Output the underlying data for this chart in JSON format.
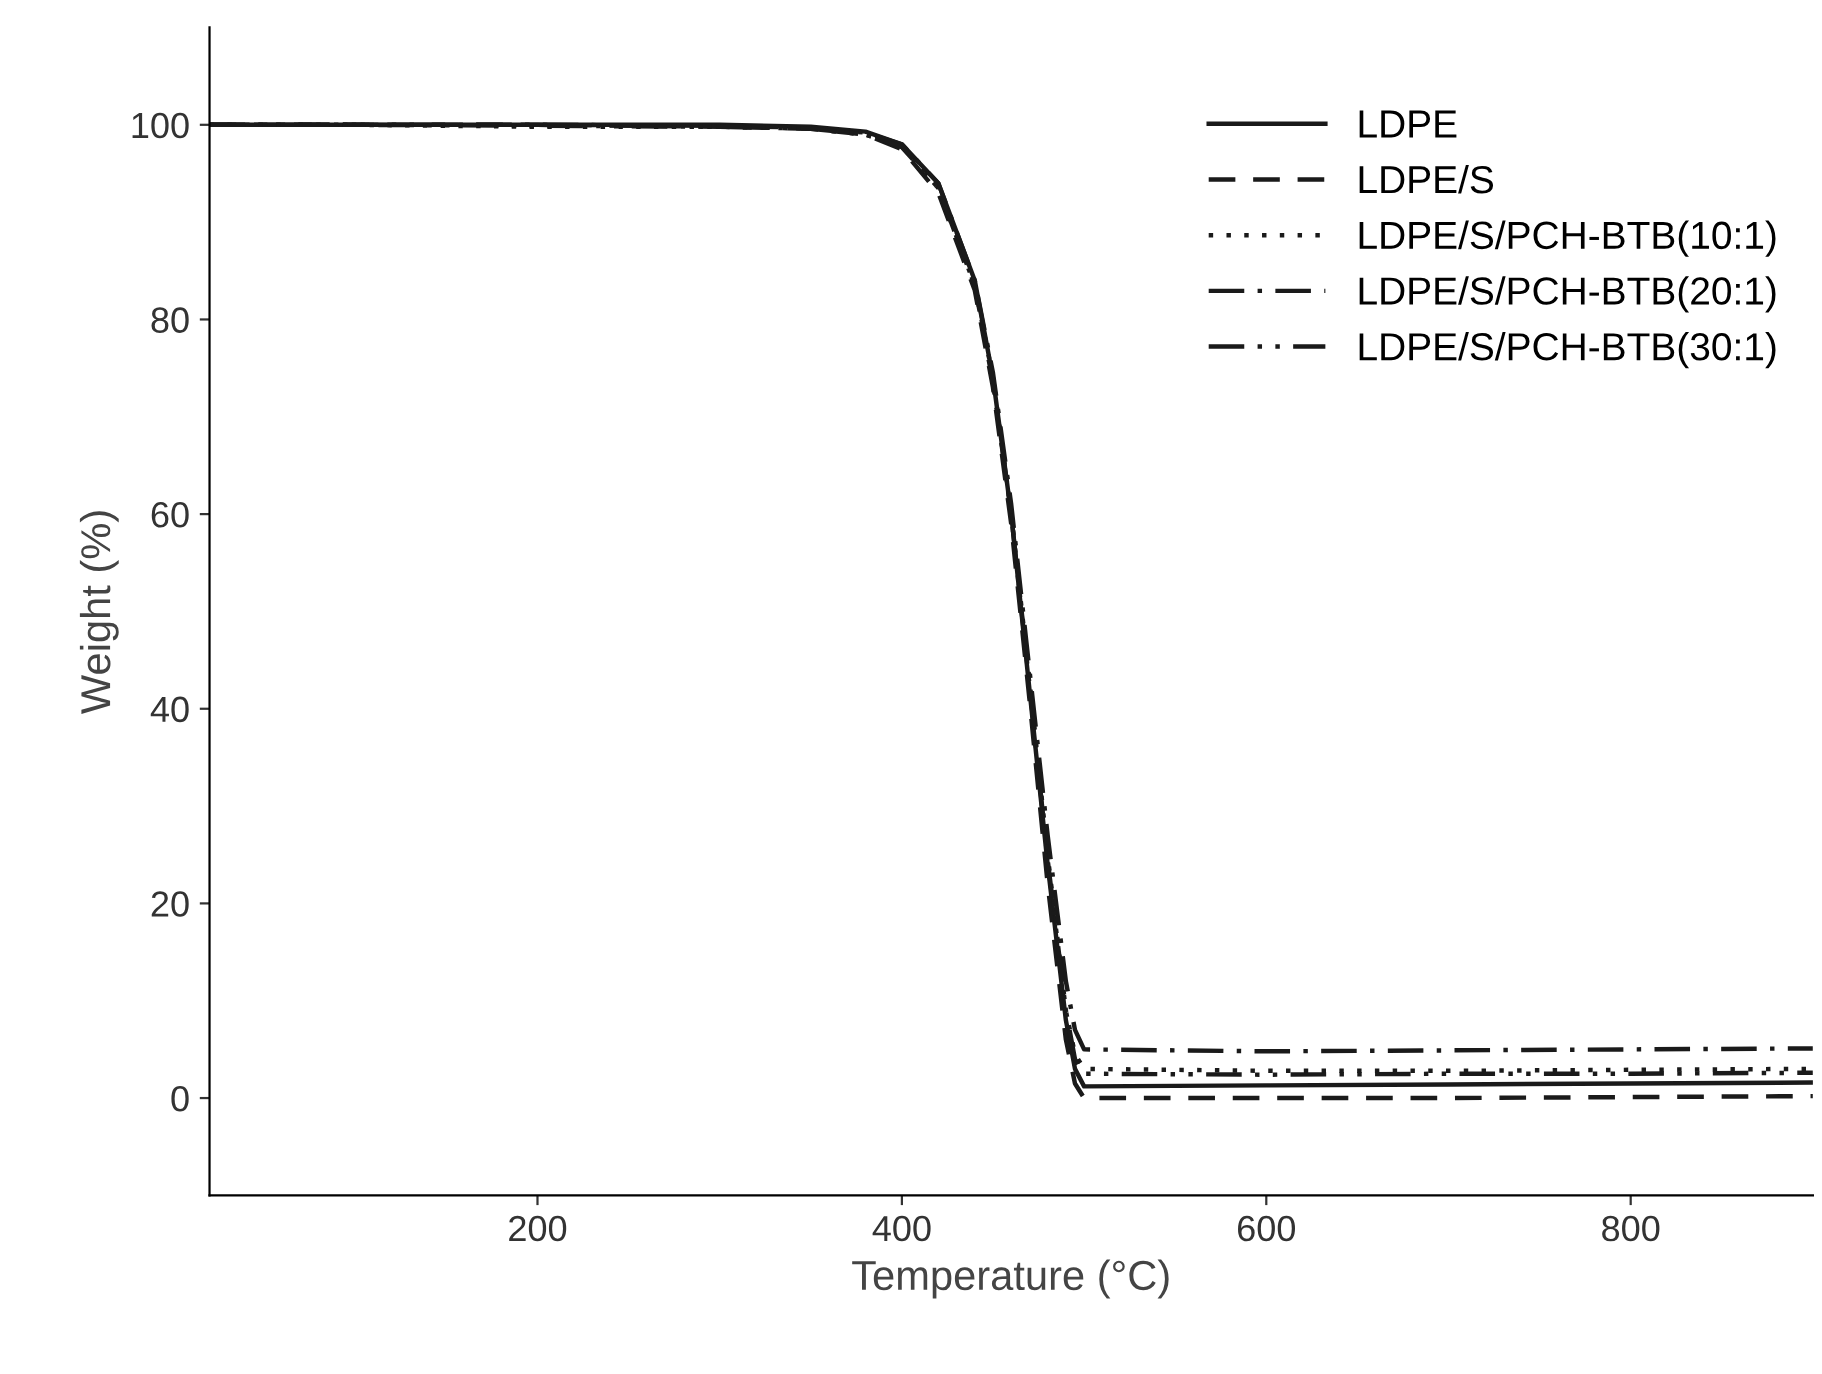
{
  "chart_data": {
    "type": "line",
    "xlabel": "Temperature (°C)",
    "ylabel": "Weight (%)",
    "xlim": [
      20,
      900
    ],
    "ylim": [
      -10,
      110
    ],
    "xticks": [
      200,
      400,
      600,
      800
    ],
    "yticks": [
      0,
      20,
      40,
      60,
      80,
      100
    ],
    "grid": false,
    "legend": "top right",
    "marker": "none",
    "x": [
      20,
      100,
      200,
      300,
      350,
      380,
      400,
      420,
      440,
      450,
      460,
      470,
      480,
      490,
      495,
      500,
      600,
      700,
      800,
      900
    ],
    "series": [
      {
        "name": "LDPE",
        "color": "#1a1a1a",
        "line_style": "solid",
        "values": [
          100,
          100,
          100,
          100,
          99.8,
          99.3,
          98,
          94,
          84,
          74,
          60,
          42,
          24,
          8,
          3,
          1.2,
          1.3,
          1.4,
          1.5,
          1.6
        ]
      },
      {
        "name": "LDPE/S",
        "color": "#1a1a1a",
        "line_style": "dashed",
        "values": [
          100,
          100,
          100,
          99.8,
          99.6,
          99,
          97.5,
          93,
          83,
          73,
          59,
          41,
          22,
          6,
          1.5,
          0,
          0,
          0,
          0.1,
          0.2
        ]
      },
      {
        "name": "LDPE/S/PCH-BTB(10:1)",
        "color": "#1a1a1a",
        "line_style": "dotted",
        "values": [
          100,
          100,
          99.8,
          99.8,
          99.6,
          99,
          97.8,
          93.5,
          83.5,
          74,
          60,
          43,
          25,
          9,
          4.5,
          3,
          2.8,
          2.8,
          2.9,
          3
        ]
      },
      {
        "name": "LDPE/S/PCH-BTB(20:1)",
        "color": "#1a1a1a",
        "line_style": "dashdot",
        "values": [
          100,
          100,
          100,
          99.9,
          99.7,
          99.2,
          98,
          94,
          84,
          74.5,
          61,
          44,
          27,
          12,
          7,
          5,
          4.8,
          4.9,
          5,
          5.1
        ]
      },
      {
        "name": "LDPE/S/PCH-BTB(30:1)",
        "color": "#1a1a1a",
        "line_style": "dashdotdot",
        "values": [
          100,
          100,
          99.9,
          99.8,
          99.6,
          99,
          97.7,
          93.5,
          83.5,
          73.5,
          60,
          42.5,
          24.5,
          9,
          4,
          2.5,
          2.4,
          2.5,
          2.5,
          2.6
        ]
      }
    ]
  }
}
